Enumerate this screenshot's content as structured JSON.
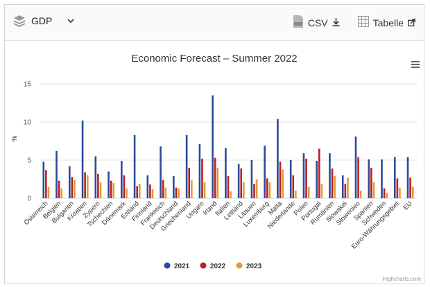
{
  "toolbar": {
    "dataset_label": "GDP",
    "csv_label": "CSV",
    "table_label": "Tabelle"
  },
  "colors": {
    "series_2021": "#2a4a9a",
    "series_2022": "#b82025",
    "series_2023": "#e39a32",
    "grid": "#e6e6e6",
    "text": "#333333"
  },
  "credits": "Highcharts.com",
  "chart_data": {
    "type": "bar",
    "title": "Economic Forecast – Summer 2022",
    "ylabel": "%",
    "ylim": [
      0,
      15
    ],
    "yticks": [
      0,
      5,
      10,
      15
    ],
    "grid": true,
    "legend_position": "bottom-center",
    "categories": [
      "Österreich",
      "Belgien",
      "Bulgarien",
      "Kroatien",
      "Zypern",
      "Tschechien",
      "Dänemark",
      "Estland",
      "Finnland",
      "Frankreich",
      "Deutschland",
      "Griechenland",
      "Ungarn",
      "Irland",
      "Italien",
      "Lettland",
      "Litauen",
      "Luxemburg",
      "Malta",
      "Niederlande",
      "Polen",
      "Portugal",
      "Rumänien",
      "Slowakei",
      "Slowenien",
      "Spanien",
      "Schweden",
      "Euro-Währungsgebiet",
      "EU"
    ],
    "series": [
      {
        "name": "2021",
        "color": "#2a4a9a",
        "values": [
          4.8,
          6.2,
          4.2,
          10.2,
          5.5,
          3.5,
          4.9,
          8.3,
          3.0,
          6.8,
          2.9,
          8.3,
          7.1,
          13.5,
          6.6,
          4.5,
          5.0,
          6.9,
          10.4,
          5.0,
          5.9,
          4.9,
          5.9,
          3.0,
          8.1,
          5.1,
          5.1,
          5.4,
          5.4
        ]
      },
      {
        "name": "2022",
        "color": "#b82025",
        "values": [
          3.7,
          2.3,
          2.8,
          3.4,
          3.2,
          2.3,
          3.0,
          1.6,
          1.8,
          2.4,
          1.4,
          4.0,
          5.2,
          5.3,
          2.9,
          3.9,
          1.9,
          2.6,
          4.8,
          3.0,
          5.2,
          6.5,
          3.9,
          1.9,
          5.4,
          4.0,
          1.3,
          2.6,
          2.7
        ]
      },
      {
        "name": "2023",
        "color": "#e39a32",
        "values": [
          1.5,
          1.3,
          2.4,
          3.0,
          2.1,
          2.0,
          1.3,
          1.9,
          1.2,
          1.4,
          1.3,
          2.4,
          2.1,
          4.0,
          0.9,
          2.1,
          2.5,
          2.1,
          3.8,
          1.0,
          1.5,
          1.9,
          2.9,
          2.7,
          1.0,
          2.1,
          0.7,
          1.4,
          1.5
        ]
      }
    ]
  }
}
